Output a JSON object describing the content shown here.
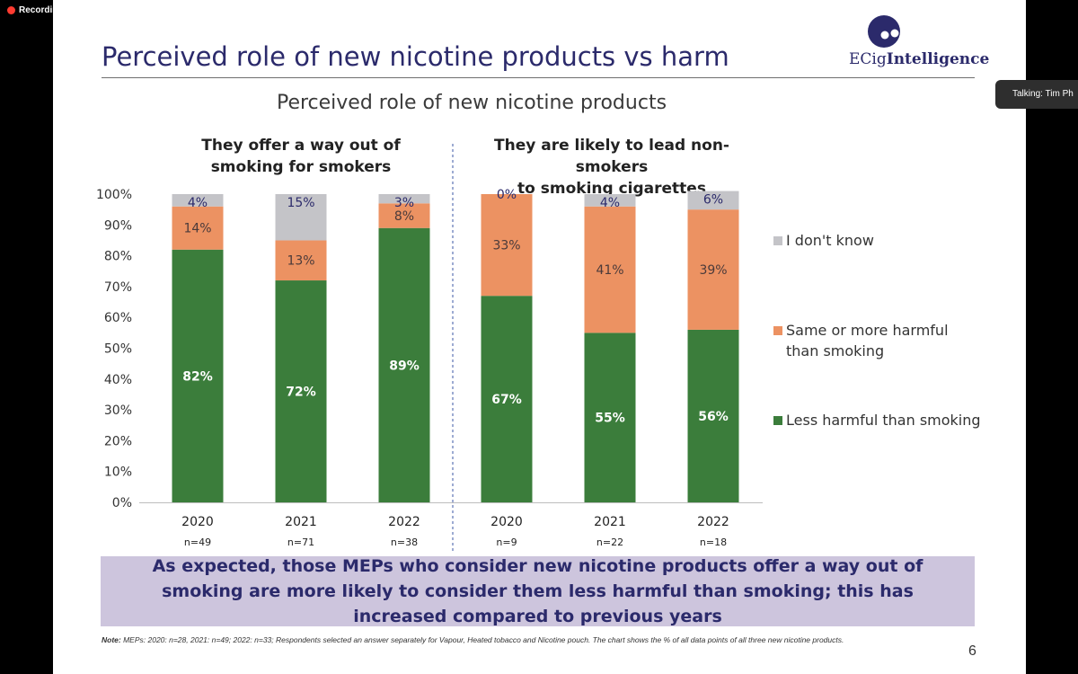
{
  "recording": {
    "label": "Recording"
  },
  "talking": {
    "label": "Talking: Tim Ph"
  },
  "slide": {
    "title": "Perceived role of new nicotine products vs harm",
    "logo": {
      "prefix": "ECig",
      "suffix": "Intelligence"
    },
    "page_number": "6",
    "callout": "As expected, those MEPs who consider new nicotine products offer a way out of smoking are more likely to consider them less harmful than smoking; this has increased compared to previous years",
    "note": {
      "label": "Note:",
      "text": " MEPs: 2020: n=28, 2021: n=49;  2022: n=33; Respondents selected an answer separately for Vapour, Heated tobacco and Nicotine pouch. The chart shows the % of all data points of all three new nicotine products."
    }
  },
  "colors": {
    "green": "#3b7d3b",
    "orange": "#ec9262",
    "grey": "#c4c4c8",
    "navy": "#2b2a6b",
    "callout_bg": "#cdc5dd"
  },
  "chart_data": {
    "type": "bar",
    "stacked": true,
    "title": "Perceived role of new nicotine products",
    "y_ticks": [
      "100%",
      "90%",
      "80%",
      "70%",
      "60%",
      "50%",
      "40%",
      "30%",
      "20%",
      "10%",
      "0%"
    ],
    "ylim": [
      0,
      100
    ],
    "legend_position": "right",
    "series": [
      {
        "name": "I don't know",
        "color": "#c4c4c8"
      },
      {
        "name": "Same or more harmful than smoking",
        "color": "#ec9262"
      },
      {
        "name": "Less harmful than smoking",
        "color": "#3b7d3b"
      }
    ],
    "groups": [
      {
        "title": "They offer a way out of smoking for smokers",
        "title_lines": [
          "They offer a way out of",
          "smoking for smokers"
        ],
        "bars": [
          {
            "year": "2020",
            "n": "n=49",
            "less": 82,
            "same": 14,
            "dk": 4,
            "labels": {
              "less": "82%",
              "same": "14%",
              "dk": "4%"
            }
          },
          {
            "year": "2021",
            "n": "n=71",
            "less": 72,
            "same": 13,
            "dk": 15,
            "labels": {
              "less": "72%",
              "same": "13%",
              "dk": "15%"
            }
          },
          {
            "year": "2022",
            "n": "n=38",
            "less": 89,
            "same": 8,
            "dk": 3,
            "labels": {
              "less": "89%",
              "same": "8%",
              "dk": "3%"
            }
          }
        ]
      },
      {
        "title": "They are likely to lead non-smokers to smoking cigarettes",
        "title_lines": [
          "They are likely to lead non-smokers",
          "to smoking cigarettes"
        ],
        "bars": [
          {
            "year": "2020",
            "n": "n=9",
            "less": 67,
            "same": 33,
            "dk": 0,
            "labels": {
              "less": "67%",
              "same": "33%",
              "dk": "0%"
            }
          },
          {
            "year": "2021",
            "n": "n=22",
            "less": 55,
            "same": 41,
            "dk": 4,
            "labels": {
              "less": "55%",
              "same": "41%",
              "dk": "4%"
            }
          },
          {
            "year": "2022",
            "n": "n=18",
            "less": 56,
            "same": 39,
            "dk": 6,
            "labels": {
              "less": "56%",
              "same": "39%",
              "dk": "6%"
            }
          }
        ]
      }
    ]
  }
}
